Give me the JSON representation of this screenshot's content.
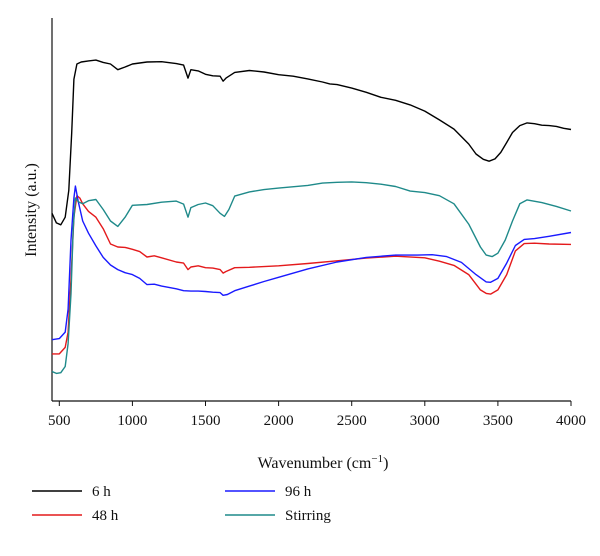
{
  "chart_data": {
    "type": "line",
    "title": "",
    "xlabel": "Wavenumber (cm",
    "xlabel_sup": "−1",
    "xlabel_close": ")",
    "ylabel": "Intensity (a.u.)",
    "xlim": [
      450,
      4000
    ],
    "ylim": [
      0,
      100
    ],
    "x_ticks": [
      500,
      1000,
      1500,
      2000,
      2500,
      3000,
      3500,
      4000
    ],
    "x_tick_labels": [
      "500",
      "1000",
      "1500",
      "2000",
      "2500",
      "3000",
      "3500",
      "4000"
    ],
    "y_ticks_shown": false,
    "grid": false,
    "legend_position": "bottom",
    "series": [
      {
        "name": "6 h",
        "color": "#000000",
        "points": [
          [
            450,
            49
          ],
          [
            480,
            46.5
          ],
          [
            510,
            46
          ],
          [
            540,
            48
          ],
          [
            565,
            55
          ],
          [
            585,
            70
          ],
          [
            600,
            84
          ],
          [
            620,
            88
          ],
          [
            650,
            88.5
          ],
          [
            700,
            88.8
          ],
          [
            750,
            89
          ],
          [
            800,
            88.4
          ],
          [
            850,
            88
          ],
          [
            900,
            86.5
          ],
          [
            950,
            87.2
          ],
          [
            1000,
            88
          ],
          [
            1100,
            88.5
          ],
          [
            1200,
            88.6
          ],
          [
            1300,
            88.1
          ],
          [
            1350,
            87.7
          ],
          [
            1380,
            84.3
          ],
          [
            1400,
            86.5
          ],
          [
            1450,
            86.2
          ],
          [
            1500,
            85.3
          ],
          [
            1550,
            84.9
          ],
          [
            1600,
            84.8
          ],
          [
            1620,
            83.5
          ],
          [
            1640,
            84.3
          ],
          [
            1700,
            85.8
          ],
          [
            1800,
            86.3
          ],
          [
            1900,
            85.9
          ],
          [
            2000,
            85.2
          ],
          [
            2100,
            84.8
          ],
          [
            2200,
            84.1
          ],
          [
            2300,
            83.3
          ],
          [
            2350,
            82.8
          ],
          [
            2400,
            82.6
          ],
          [
            2500,
            81.7
          ],
          [
            2600,
            80.6
          ],
          [
            2700,
            79.3
          ],
          [
            2800,
            78.5
          ],
          [
            2900,
            77.3
          ],
          [
            3000,
            75.7
          ],
          [
            3100,
            73.4
          ],
          [
            3200,
            71
          ],
          [
            3300,
            67.1
          ],
          [
            3350,
            64.5
          ],
          [
            3400,
            63.1
          ],
          [
            3440,
            62.6
          ],
          [
            3480,
            63.2
          ],
          [
            3520,
            64.9
          ],
          [
            3560,
            67.5
          ],
          [
            3600,
            70.1
          ],
          [
            3650,
            71.9
          ],
          [
            3700,
            72.6
          ],
          [
            3750,
            72.4
          ],
          [
            3800,
            72
          ],
          [
            3850,
            71.9
          ],
          [
            3900,
            71.7
          ],
          [
            3950,
            71.2
          ],
          [
            4000,
            70.9
          ]
        ]
      },
      {
        "name": "48 h",
        "color": "#e41a1c",
        "points": [
          [
            450,
            12.3
          ],
          [
            500,
            12.3
          ],
          [
            540,
            14
          ],
          [
            560,
            18
          ],
          [
            580,
            32
          ],
          [
            600,
            48
          ],
          [
            620,
            53.6
          ],
          [
            640,
            53
          ],
          [
            660,
            51.5
          ],
          [
            700,
            49.5
          ],
          [
            750,
            48
          ],
          [
            800,
            45
          ],
          [
            850,
            41
          ],
          [
            900,
            40.2
          ],
          [
            950,
            40.1
          ],
          [
            1000,
            39.6
          ],
          [
            1050,
            39
          ],
          [
            1100,
            37.6
          ],
          [
            1150,
            37.9
          ],
          [
            1200,
            37.4
          ],
          [
            1300,
            36.3
          ],
          [
            1350,
            36
          ],
          [
            1380,
            34.3
          ],
          [
            1400,
            35
          ],
          [
            1450,
            35.3
          ],
          [
            1500,
            34.8
          ],
          [
            1550,
            34.7
          ],
          [
            1600,
            34.3
          ],
          [
            1620,
            33.4
          ],
          [
            1640,
            33.8
          ],
          [
            1700,
            34.8
          ],
          [
            1800,
            34.9
          ],
          [
            2000,
            35.3
          ],
          [
            2200,
            35.9
          ],
          [
            2400,
            36.6
          ],
          [
            2600,
            37.3
          ],
          [
            2800,
            37.8
          ],
          [
            3000,
            37.4
          ],
          [
            3100,
            36.5
          ],
          [
            3200,
            35.4
          ],
          [
            3300,
            33
          ],
          [
            3380,
            29
          ],
          [
            3420,
            28.1
          ],
          [
            3450,
            27.9
          ],
          [
            3500,
            29
          ],
          [
            3560,
            33
          ],
          [
            3620,
            39.2
          ],
          [
            3680,
            41.1
          ],
          [
            3750,
            41.2
          ],
          [
            3850,
            41
          ],
          [
            4000,
            40.9
          ]
        ]
      },
      {
        "name": "96 h",
        "color": "#1a1aff",
        "points": [
          [
            450,
            16
          ],
          [
            500,
            16.3
          ],
          [
            540,
            18
          ],
          [
            560,
            24
          ],
          [
            580,
            42
          ],
          [
            600,
            53
          ],
          [
            610,
            56.1
          ],
          [
            630,
            52
          ],
          [
            660,
            47
          ],
          [
            700,
            43.8
          ],
          [
            750,
            40.5
          ],
          [
            800,
            37.5
          ],
          [
            850,
            35.5
          ],
          [
            900,
            34.3
          ],
          [
            950,
            33.5
          ],
          [
            1000,
            33
          ],
          [
            1050,
            32
          ],
          [
            1100,
            30.4
          ],
          [
            1150,
            30.5
          ],
          [
            1200,
            30
          ],
          [
            1300,
            29.3
          ],
          [
            1350,
            28.8
          ],
          [
            1400,
            28.7
          ],
          [
            1450,
            28.7
          ],
          [
            1500,
            28.6
          ],
          [
            1550,
            28.4
          ],
          [
            1600,
            28.3
          ],
          [
            1620,
            27.6
          ],
          [
            1650,
            27.8
          ],
          [
            1700,
            28.8
          ],
          [
            1800,
            30
          ],
          [
            1900,
            31.2
          ],
          [
            2000,
            32.3
          ],
          [
            2200,
            34.5
          ],
          [
            2400,
            36.3
          ],
          [
            2600,
            37.5
          ],
          [
            2800,
            38.1
          ],
          [
            2950,
            38.1
          ],
          [
            3050,
            38.2
          ],
          [
            3150,
            37.7
          ],
          [
            3250,
            36.2
          ],
          [
            3350,
            33
          ],
          [
            3420,
            31.1
          ],
          [
            3450,
            31
          ],
          [
            3500,
            32
          ],
          [
            3560,
            36
          ],
          [
            3620,
            40.6
          ],
          [
            3680,
            42.2
          ],
          [
            3750,
            42.4
          ],
          [
            3850,
            43
          ],
          [
            4000,
            44
          ]
        ]
      },
      {
        "name": "Stirring",
        "color": "#1f8a8a",
        "points": [
          [
            450,
            7.7
          ],
          [
            480,
            7.2
          ],
          [
            510,
            7.4
          ],
          [
            540,
            9
          ],
          [
            560,
            15
          ],
          [
            580,
            28
          ],
          [
            595,
            45
          ],
          [
            610,
            53
          ],
          [
            630,
            52
          ],
          [
            660,
            51.5
          ],
          [
            700,
            52.3
          ],
          [
            750,
            52.6
          ],
          [
            800,
            50
          ],
          [
            850,
            47
          ],
          [
            900,
            45.6
          ],
          [
            950,
            48
          ],
          [
            1000,
            51.1
          ],
          [
            1100,
            51.3
          ],
          [
            1200,
            51.9
          ],
          [
            1300,
            52.2
          ],
          [
            1350,
            51.4
          ],
          [
            1380,
            48
          ],
          [
            1400,
            50.5
          ],
          [
            1450,
            51.3
          ],
          [
            1500,
            51.7
          ],
          [
            1550,
            51
          ],
          [
            1600,
            49
          ],
          [
            1630,
            48.2
          ],
          [
            1660,
            50
          ],
          [
            1700,
            53.5
          ],
          [
            1800,
            54.6
          ],
          [
            1900,
            55.2
          ],
          [
            2000,
            55.6
          ],
          [
            2200,
            56.3
          ],
          [
            2300,
            56.9
          ],
          [
            2400,
            57.1
          ],
          [
            2500,
            57.2
          ],
          [
            2600,
            57
          ],
          [
            2700,
            56.6
          ],
          [
            2800,
            56
          ],
          [
            2900,
            54.8
          ],
          [
            3000,
            54.4
          ],
          [
            3100,
            53.6
          ],
          [
            3200,
            51.5
          ],
          [
            3300,
            46.2
          ],
          [
            3380,
            40.2
          ],
          [
            3420,
            38.1
          ],
          [
            3460,
            37.7
          ],
          [
            3500,
            38.6
          ],
          [
            3550,
            42
          ],
          [
            3600,
            47
          ],
          [
            3650,
            51.5
          ],
          [
            3700,
            52.5
          ],
          [
            3800,
            51.8
          ],
          [
            3900,
            50.8
          ],
          [
            4000,
            49.6
          ]
        ]
      }
    ]
  }
}
